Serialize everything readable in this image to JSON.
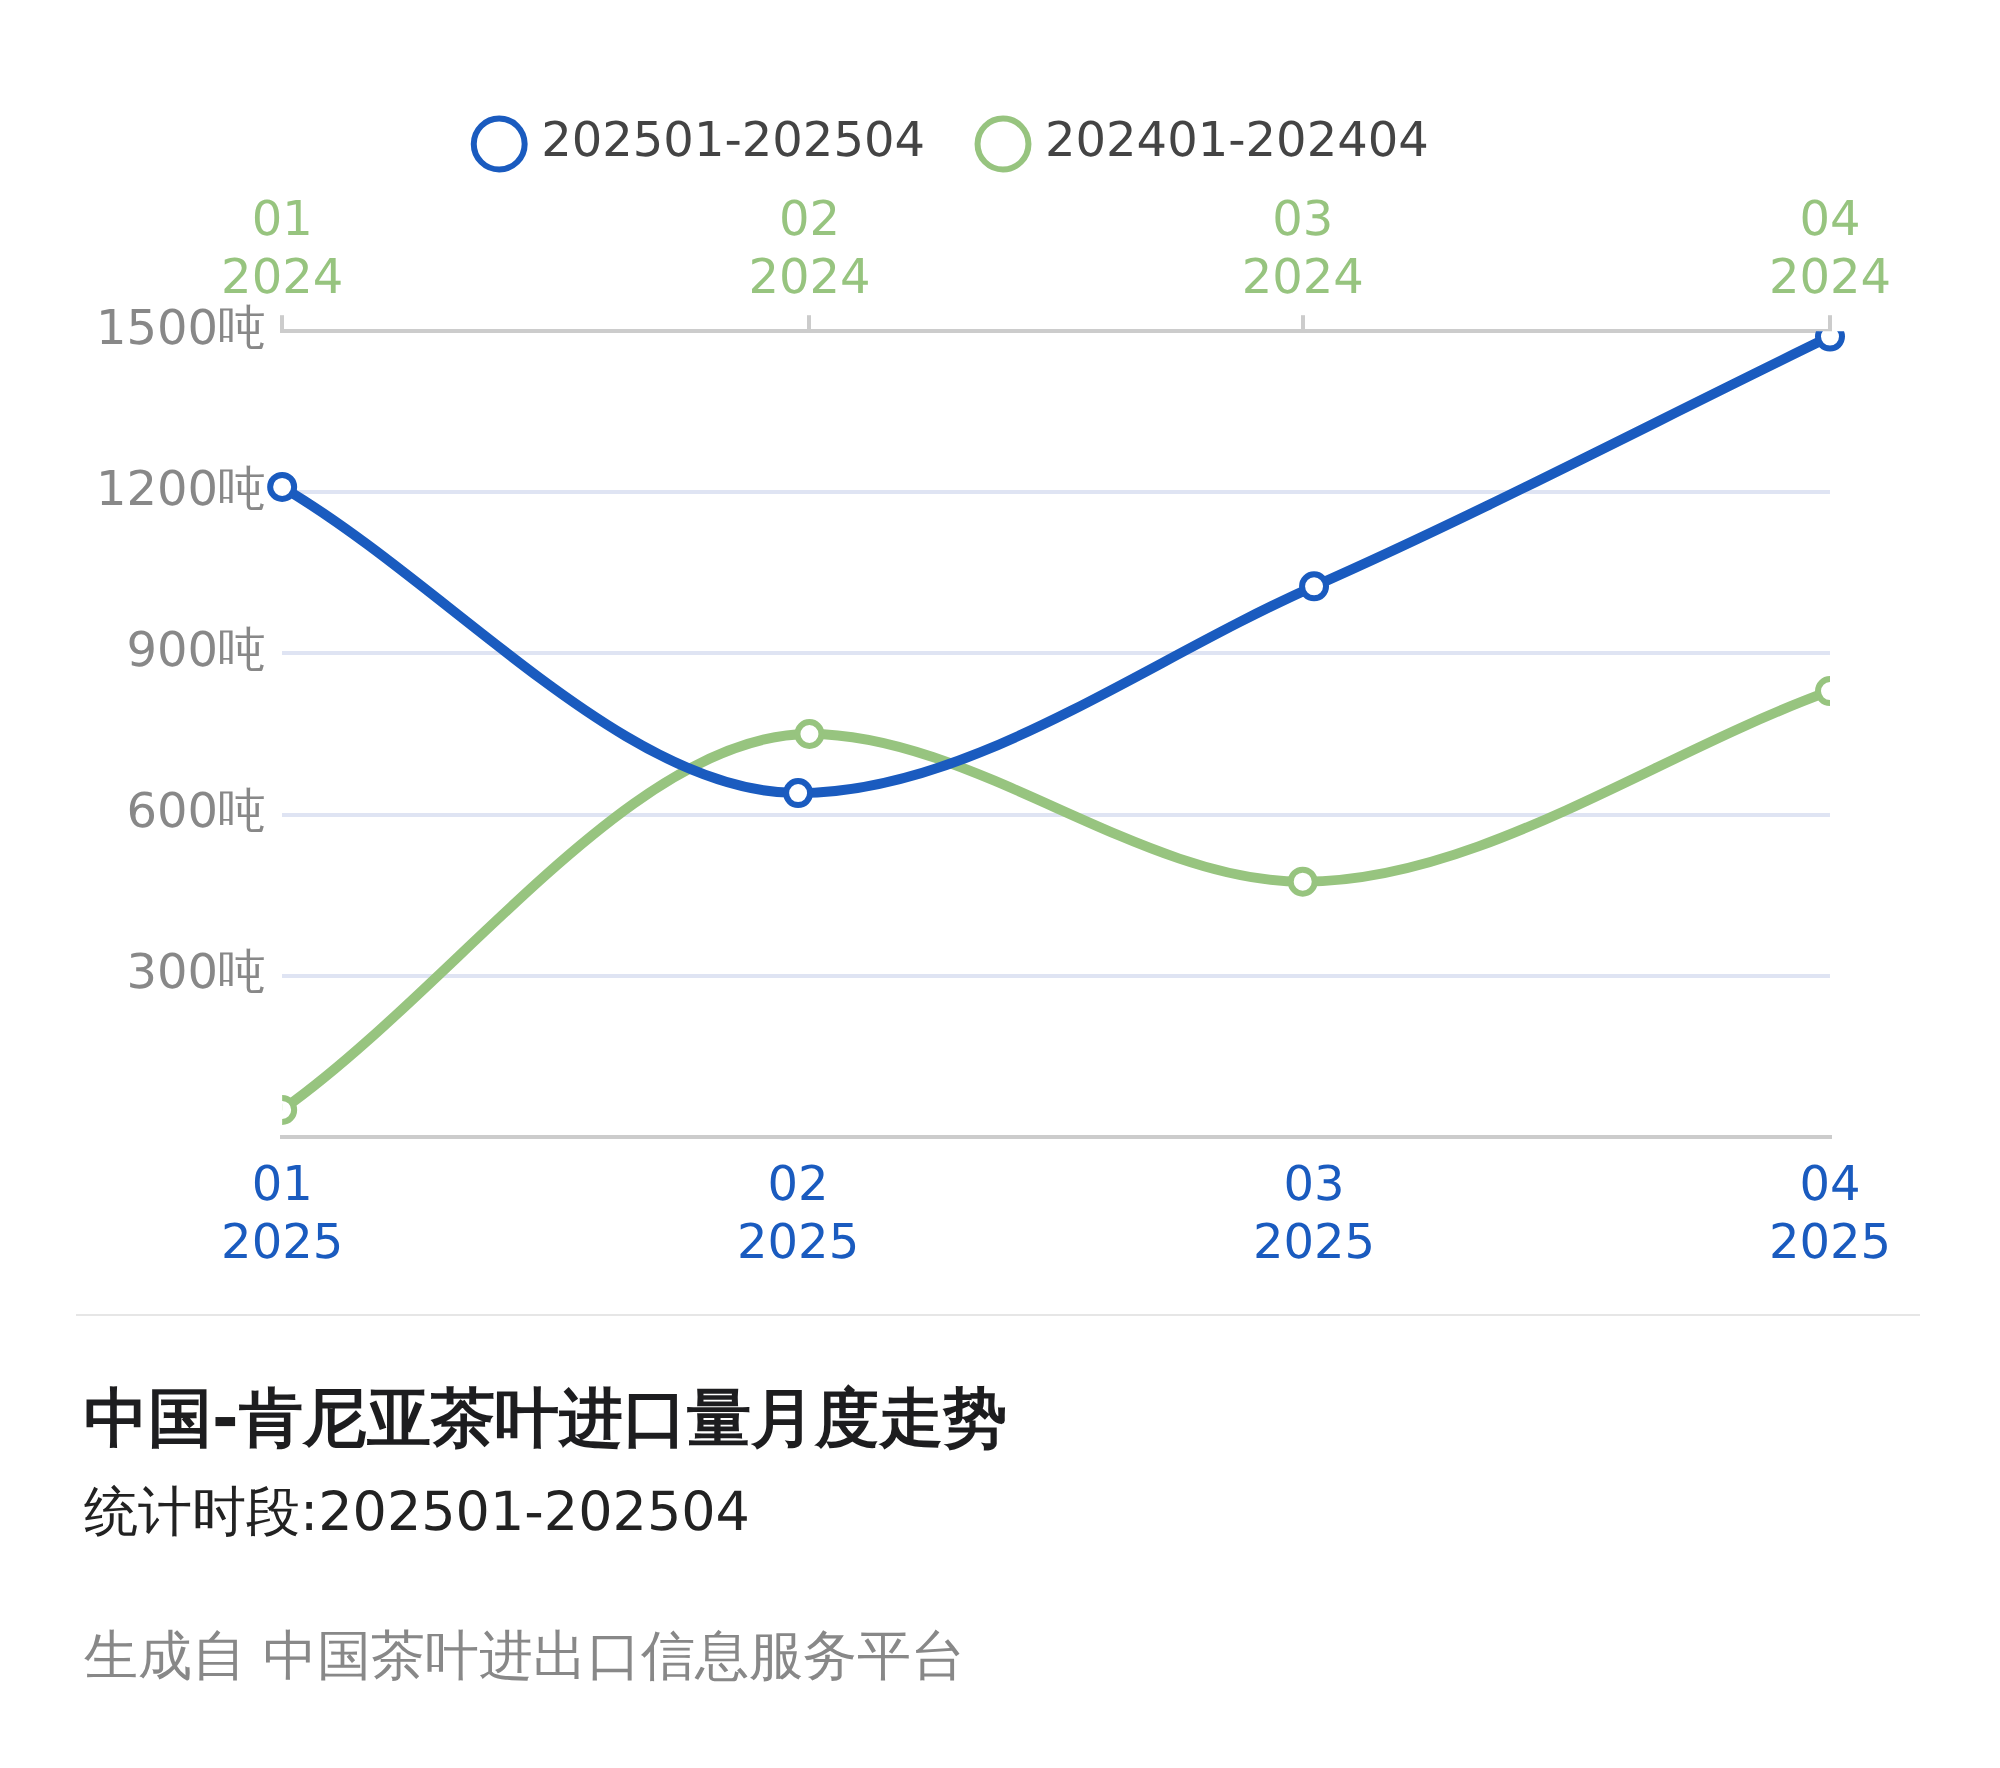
{
  "chart_data": {
    "type": "line",
    "title": "中国-肯尼亚茶叶进口量月度走势",
    "subtitle": "统计时段:202501-202504",
    "annotations": [
      "生成自 中国茶叶进出口信息服务平台"
    ],
    "categories": [
      "01\n2025",
      "02\n2025",
      "03\n2025",
      "04\n2025"
    ],
    "series": [
      {
        "name": "202501-202504",
        "color": "#1a5bbf",
        "values": [
          1210,
          640,
          1025,
          1490
        ]
      },
      {
        "name": "202401-202404",
        "color": "#97c47f",
        "axis": "x2",
        "x": [
          "2024-01",
          "2024-02",
          "2024-03",
          "2024-04"
        ],
        "values": [
          50,
          750,
          475,
          830
        ]
      }
    ],
    "x2lim": [
      "2024-01",
      "2024-04"
    ],
    "x2ticks": [
      {
        "value": "2024-01",
        "label": "01\n2024"
      },
      {
        "value": "2024-02",
        "label": "02\n2024"
      },
      {
        "value": "2024-03",
        "label": "03\n2024"
      },
      {
        "value": "2024-04",
        "label": "04\n2024"
      }
    ],
    "ylim": [
      0,
      1500
    ],
    "yticks": [
      {
        "value": 0,
        "label": null
      },
      {
        "value": 300,
        "label": "300吨"
      },
      {
        "value": 600,
        "label": "600吨"
      },
      {
        "value": 900,
        "label": "900吨"
      },
      {
        "value": 1200,
        "label": "1200吨"
      },
      {
        "value": 1500,
        "label": "1500吨"
      }
    ],
    "grid": "y",
    "legend": "top",
    "marker": "circle",
    "line_style": "solid"
  }
}
